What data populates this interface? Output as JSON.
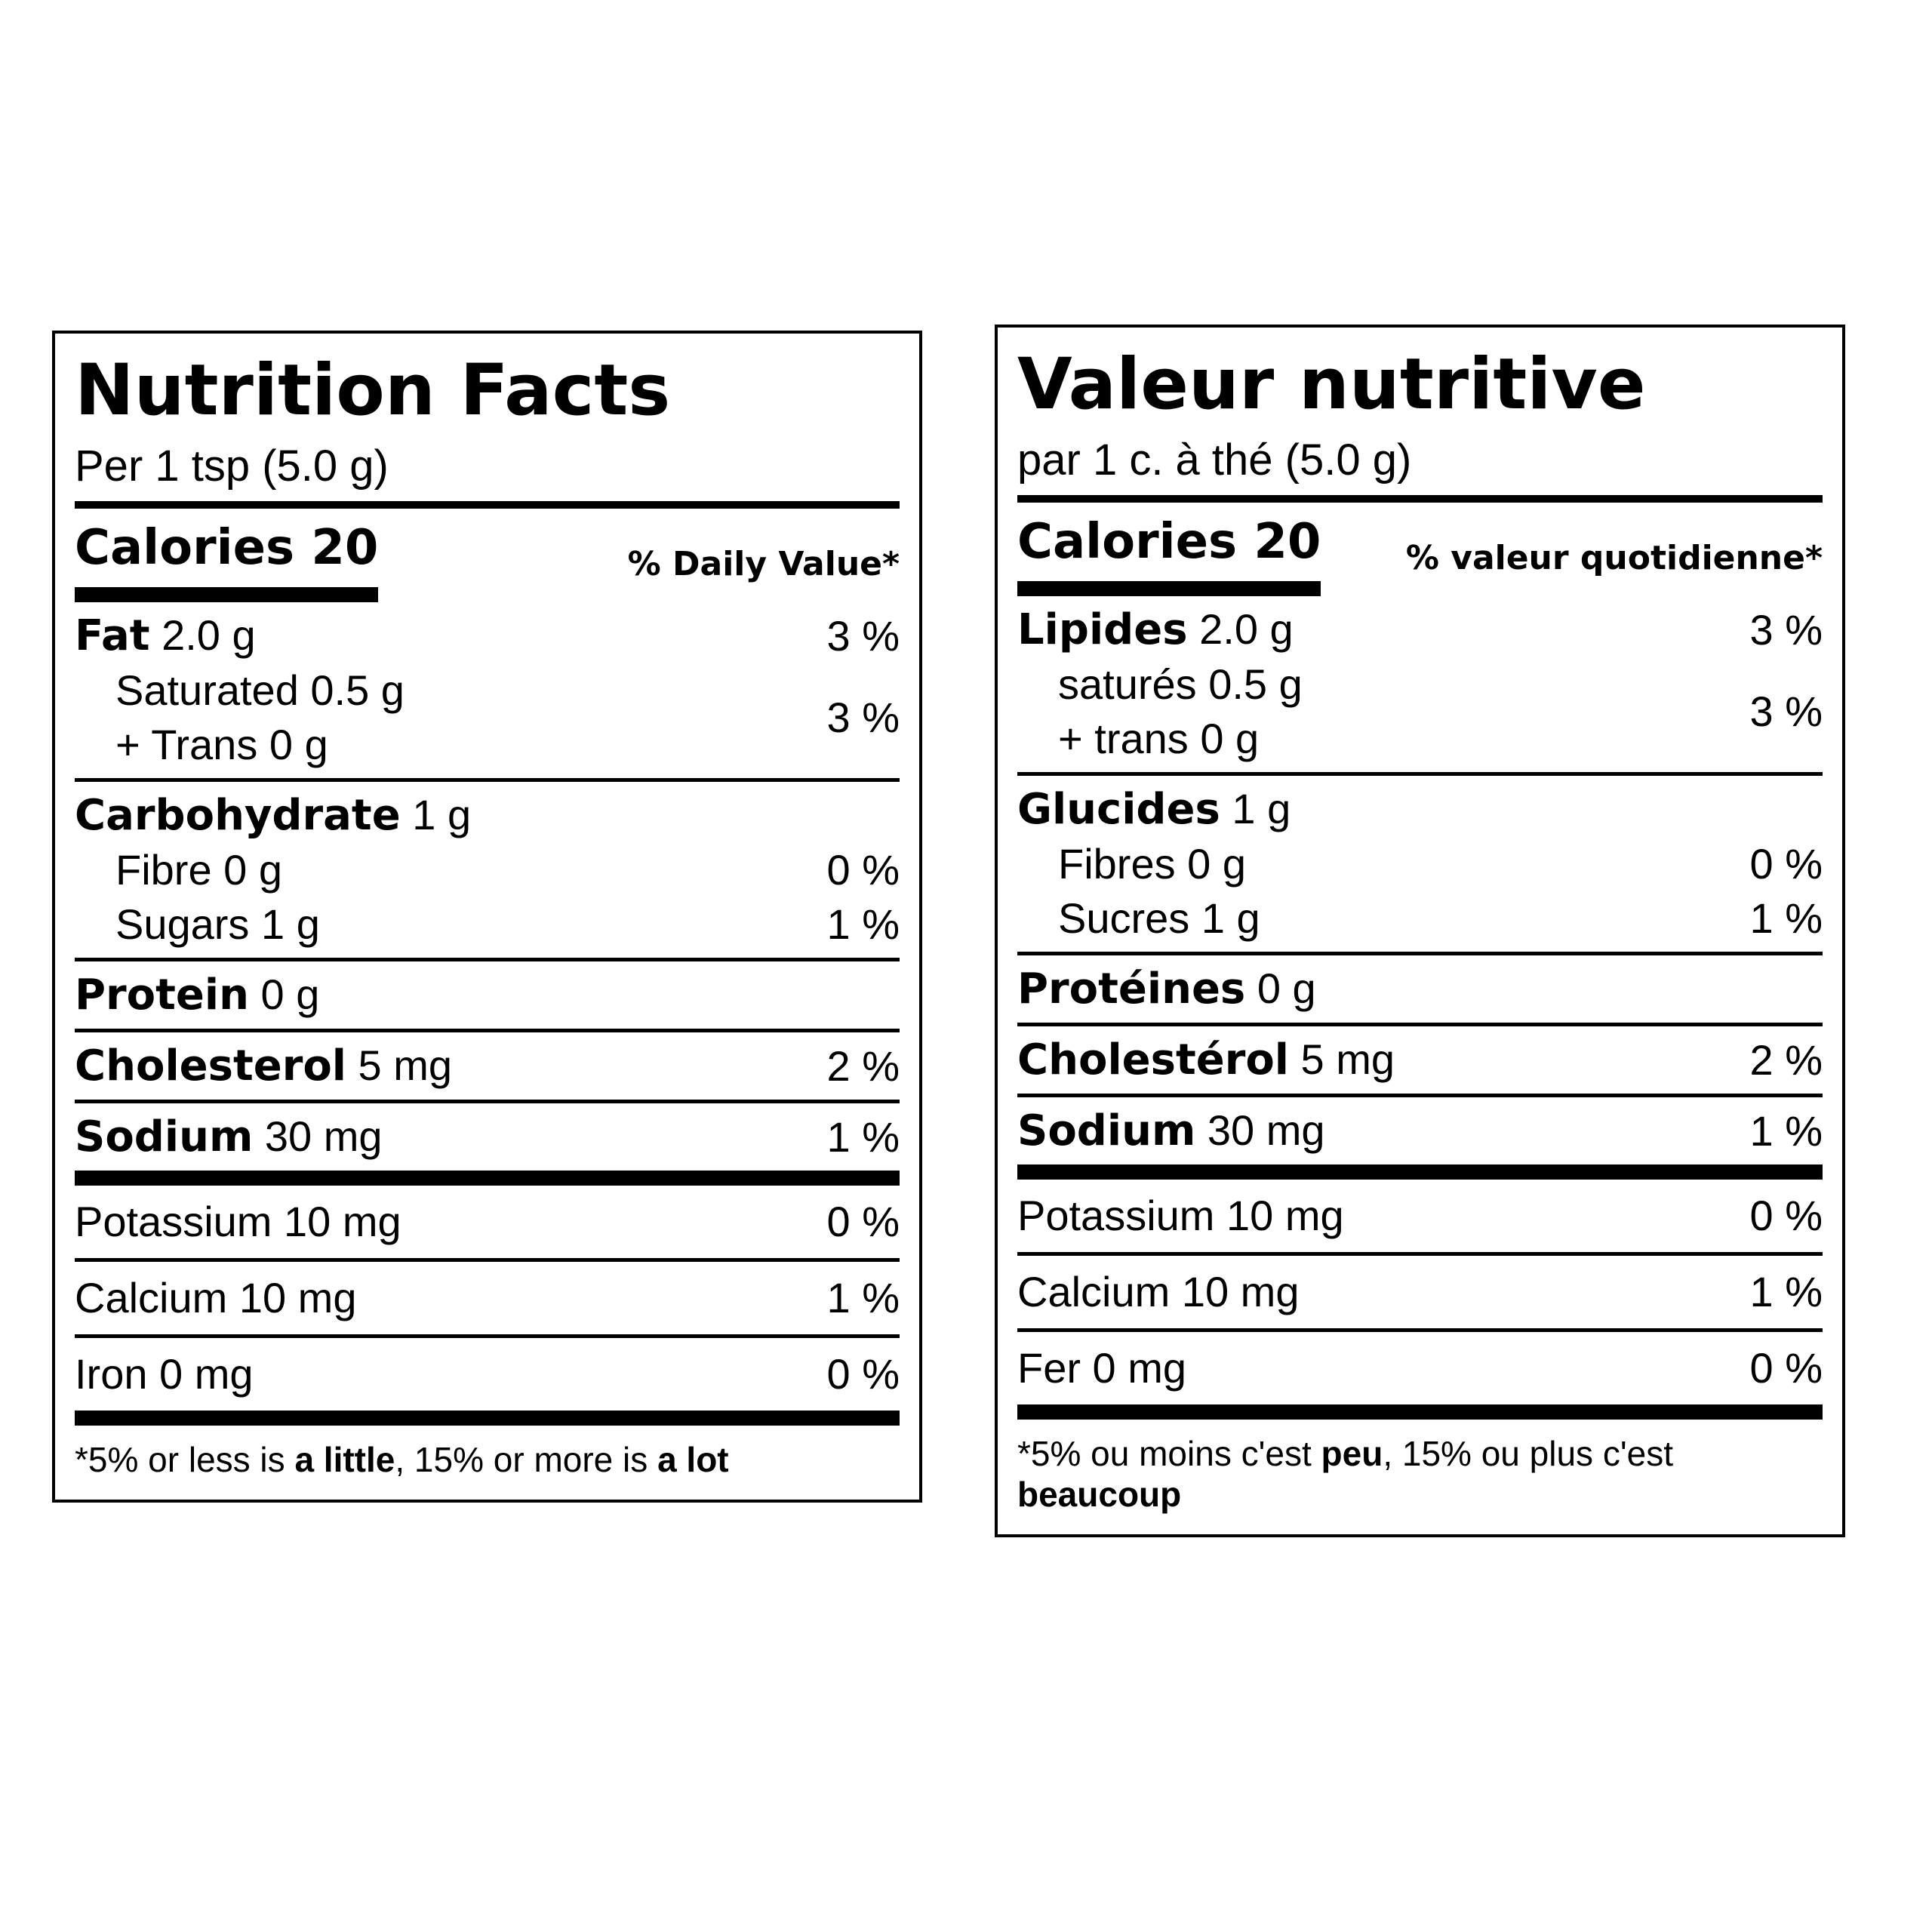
{
  "labels": [
    {
      "title": "Nutrition Facts",
      "serving": "Per 1 tsp (5.0 g)",
      "calories": "Calories 20",
      "dv_header": "% Daily Value*",
      "sections": [
        {
          "name": "Fat",
          "amount": "2.0 g",
          "dv": "3 %",
          "sub": [
            {
              "text": "Saturated 0.5 g"
            },
            {
              "text": "+ Trans 0 g"
            }
          ],
          "sub_dv": "3 %"
        },
        {
          "name": "Carbohydrate",
          "amount": "1 g",
          "sub": [
            {
              "text": "Fibre 0 g",
              "dv": "0 %"
            },
            {
              "text": "Sugars 1 g",
              "dv": "1 %"
            }
          ]
        },
        {
          "name": "Protein",
          "amount": "0 g"
        },
        {
          "name": "Cholesterol",
          "amount": "5 mg",
          "dv": "2 %"
        },
        {
          "name": "Sodium",
          "amount": "30 mg",
          "dv": "1 %"
        }
      ],
      "minerals": [
        {
          "text": "Potassium 10 mg",
          "dv": "0 %"
        },
        {
          "text": "Calcium 10 mg",
          "dv": "1 %"
        },
        {
          "text": "Iron 0 mg",
          "dv": "0 %"
        }
      ],
      "footnote": [
        {
          "text": "*5% or less is "
        },
        {
          "text": "a little",
          "bold": true
        },
        {
          "text": ", 15% or more is "
        },
        {
          "text": "a lot",
          "bold": true
        }
      ]
    },
    {
      "title": "Valeur nutritive",
      "serving": "par 1 c. à thé (5.0 g)",
      "calories": "Calories 20",
      "dv_header": "% valeur quotidienne*",
      "sections": [
        {
          "name": "Lipides",
          "amount": "2.0 g",
          "dv": "3 %",
          "sub": [
            {
              "text": "saturés 0.5 g"
            },
            {
              "text": "+ trans 0 g"
            }
          ],
          "sub_dv": "3 %"
        },
        {
          "name": "Glucides",
          "amount": "1 g",
          "sub": [
            {
              "text": "Fibres 0 g",
              "dv": "0 %"
            },
            {
              "text": "Sucres 1 g",
              "dv": "1 %"
            }
          ]
        },
        {
          "name": "Protéines",
          "amount": "0 g"
        },
        {
          "name": "Cholestérol",
          "amount": "5 mg",
          "dv": "2 %"
        },
        {
          "name": "Sodium",
          "amount": "30 mg",
          "dv": "1 %"
        }
      ],
      "minerals": [
        {
          "text": "Potassium 10 mg",
          "dv": "0 %"
        },
        {
          "text": "Calcium 10 mg",
          "dv": "1 %"
        },
        {
          "text": "Fer 0 mg",
          "dv": "0 %"
        }
      ],
      "footnote": [
        {
          "text": "*5% ou moins c'est "
        },
        {
          "text": "peu",
          "bold": true
        },
        {
          "text": ", 15% ou plus c'est "
        },
        {
          "text": "beaucoup",
          "bold": true
        }
      ]
    }
  ]
}
